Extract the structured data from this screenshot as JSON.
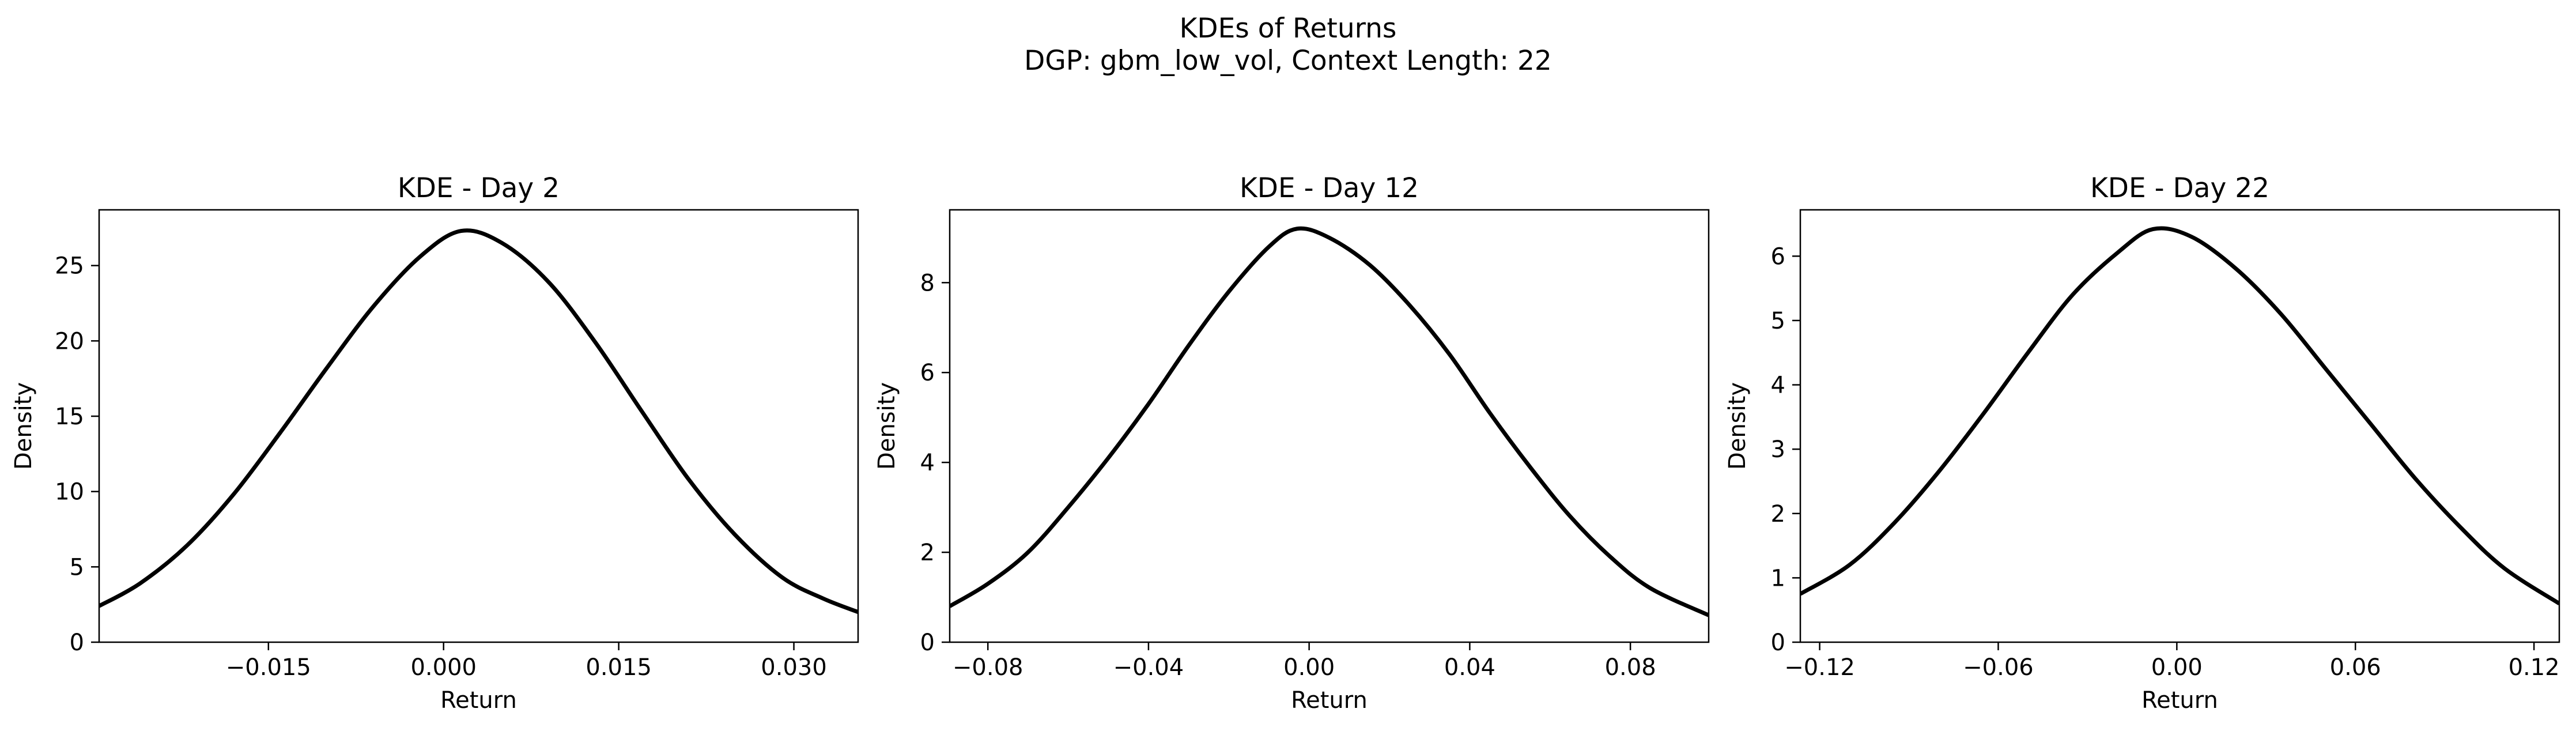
{
  "figure": {
    "title": "KDEs of Returns",
    "subtitle": "DGP: gbm_low_vol, Context Length: 22"
  },
  "chart_data": [
    {
      "type": "line",
      "title": "KDE - Day 2",
      "xlabel": "Return",
      "ylabel": "Density",
      "xlim": [
        -0.0295,
        0.0355
      ],
      "ylim": [
        0,
        28.7
      ],
      "xticks": [
        -0.015,
        0.0,
        0.015,
        0.03
      ],
      "xtick_labels": [
        "−0.015",
        "0.000",
        "0.015",
        "0.030"
      ],
      "yticks": [
        0,
        5,
        10,
        15,
        20,
        25
      ],
      "ytick_labels": [
        "0",
        "5",
        "10",
        "15",
        "20",
        "25"
      ],
      "grid": false,
      "color": "#000000",
      "series": [
        {
          "x": [
            -0.0295,
            -0.026,
            -0.022,
            -0.018,
            -0.014,
            -0.01,
            -0.006,
            -0.002,
            0.0015,
            0.005,
            0.009,
            0.013,
            0.017,
            0.021,
            0.025,
            0.029,
            0.0325,
            0.0355
          ],
          "values": [
            2.4,
            3.9,
            6.4,
            9.8,
            13.9,
            18.2,
            22.3,
            25.6,
            27.3,
            26.5,
            23.9,
            19.9,
            15.3,
            10.8,
            7.1,
            4.3,
            2.9,
            2.0
          ]
        }
      ]
    },
    {
      "type": "line",
      "title": "KDE - Day 12",
      "xlabel": "Return",
      "ylabel": "Density",
      "xlim": [
        -0.0895,
        0.0995
      ],
      "ylim": [
        0,
        9.62
      ],
      "xticks": [
        -0.08,
        -0.04,
        0.0,
        0.04,
        0.08
      ],
      "xtick_labels": [
        "−0.08",
        "−0.04",
        "0.00",
        "0.04",
        "0.08"
      ],
      "yticks": [
        0,
        2,
        4,
        6,
        8
      ],
      "ytick_labels": [
        "0",
        "2",
        "4",
        "6",
        "8"
      ],
      "grid": false,
      "color": "#000000",
      "series": [
        {
          "x": [
            -0.0895,
            -0.08,
            -0.07,
            -0.06,
            -0.05,
            -0.04,
            -0.03,
            -0.02,
            -0.01,
            -0.003,
            0.005,
            0.015,
            0.025,
            0.035,
            0.045,
            0.055,
            0.065,
            0.075,
            0.085,
            0.0995
          ],
          "values": [
            0.8,
            1.3,
            2.0,
            3.0,
            4.1,
            5.3,
            6.6,
            7.8,
            8.8,
            9.2,
            9.0,
            8.4,
            7.5,
            6.4,
            5.1,
            3.9,
            2.8,
            1.9,
            1.2,
            0.6
          ]
        }
      ]
    },
    {
      "type": "line",
      "title": "KDE - Day 22",
      "xlabel": "Return",
      "ylabel": "Density",
      "xlim": [
        -0.1265,
        0.1285
      ],
      "ylim": [
        0,
        6.72
      ],
      "xticks": [
        -0.12,
        -0.06,
        0.0,
        0.06,
        0.12
      ],
      "xtick_labels": [
        "−0.12",
        "−0.06",
        "0.00",
        "0.06",
        "0.12"
      ],
      "yticks": [
        0,
        1,
        2,
        3,
        4,
        5,
        6
      ],
      "ytick_labels": [
        "0",
        "1",
        "2",
        "3",
        "4",
        "5",
        "6"
      ],
      "grid": false,
      "color": "#000000",
      "series": [
        {
          "x": [
            -0.1265,
            -0.11,
            -0.095,
            -0.08,
            -0.065,
            -0.05,
            -0.035,
            -0.02,
            -0.008,
            0.005,
            0.02,
            0.035,
            0.05,
            0.065,
            0.08,
            0.095,
            0.11,
            0.1285
          ],
          "values": [
            0.75,
            1.2,
            1.85,
            2.65,
            3.55,
            4.5,
            5.4,
            6.05,
            6.42,
            6.3,
            5.8,
            5.1,
            4.25,
            3.4,
            2.55,
            1.8,
            1.15,
            0.6
          ]
        }
      ]
    }
  ]
}
